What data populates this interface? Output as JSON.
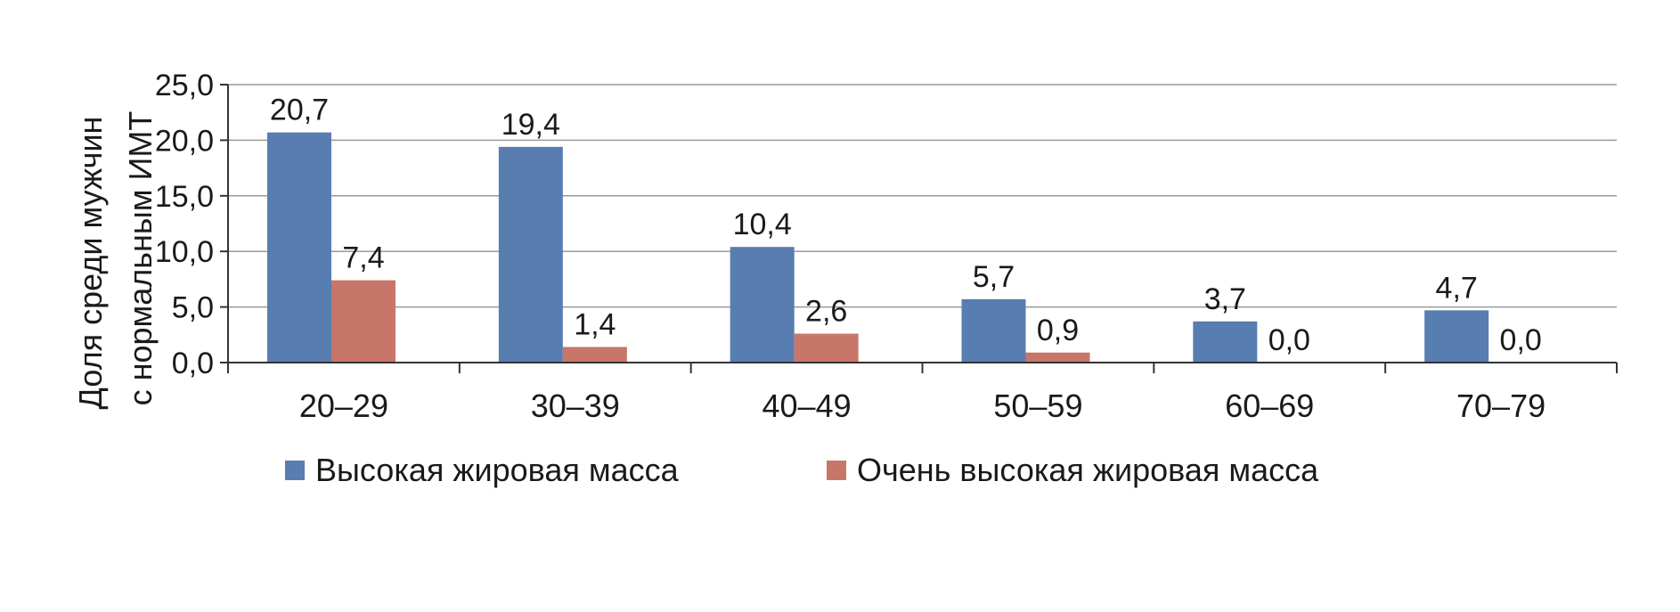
{
  "chart_data": {
    "type": "bar",
    "categories": [
      "20–29",
      "30–39",
      "40–49",
      "50–59",
      "60–69",
      "70–79"
    ],
    "series": [
      {
        "name": "Высокая жировая масса",
        "color": "#587db0",
        "values": [
          20.7,
          19.4,
          10.4,
          5.7,
          3.7,
          4.7
        ],
        "labels": [
          "20,7",
          "19,4",
          "10,4",
          "5,7",
          "3,7",
          "4,7"
        ]
      },
      {
        "name": "Очень высокая жировая масса",
        "color": "#c8766a",
        "values": [
          7.4,
          1.4,
          2.6,
          0.9,
          0.0,
          0.0
        ],
        "labels": [
          "7,4",
          "1,4",
          "2,6",
          "0,9",
          "0,0",
          "0,0"
        ]
      }
    ],
    "ylabel_lines": [
      "Доля среди мужчин",
      "с нормальным ИМТ"
    ],
    "ylim": [
      0,
      25
    ],
    "yticks": [
      {
        "value": 0,
        "label": "0,0"
      },
      {
        "value": 5,
        "label": "5,0"
      },
      {
        "value": 10,
        "label": "10,0"
      },
      {
        "value": 15,
        "label": "15,0"
      },
      {
        "value": 20,
        "label": "20,0"
      },
      {
        "value": 25,
        "label": "25,0"
      }
    ],
    "grid": true,
    "legend_position": "bottom-left"
  }
}
